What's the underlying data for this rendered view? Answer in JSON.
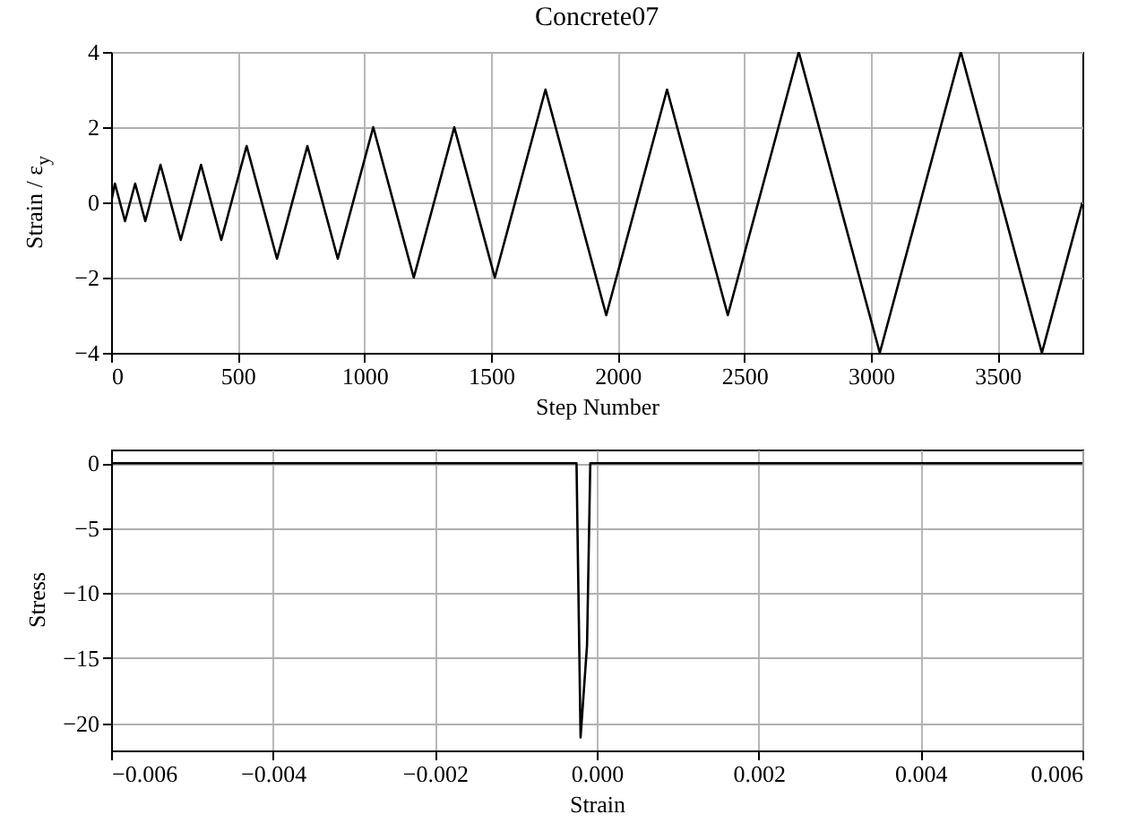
{
  "chart_data": [
    {
      "type": "line",
      "title": "Concrete07",
      "xlabel": "Step Number",
      "ylabel": "Strain / ε$_{y}$",
      "x": [
        0,
        15,
        55,
        95,
        135,
        195,
        275,
        355,
        435,
        535,
        655,
        775,
        895,
        1035,
        1195,
        1355,
        1515,
        1715,
        1955,
        2195,
        2435,
        2715,
        3035,
        3355,
        3675,
        3835
      ],
      "series": [
        {
          "color": "#000000",
          "values": [
            0,
            0.5,
            -0.5,
            0.5,
            -0.5,
            1,
            -1,
            1,
            -1,
            1.5,
            -1.5,
            1.5,
            -1.5,
            2,
            -2,
            2,
            -2,
            3,
            -3,
            3,
            -3,
            4,
            -4,
            4,
            -4,
            0
          ]
        }
      ],
      "xlim": [
        0,
        3835
      ],
      "xticks": [
        0,
        500,
        1000,
        1500,
        2000,
        2500,
        3000,
        3500
      ],
      "ylim": [
        -4,
        4
      ],
      "yticks": [
        -4,
        -2,
        0,
        2,
        4
      ],
      "grid": true,
      "marker": "none",
      "line_style": "solid"
    },
    {
      "type": "line",
      "xlabel": "Strain",
      "ylabel": "Stress",
      "x": [
        -0.006,
        -0.00025,
        -0.0002,
        -0.00012,
        -8e-05,
        0.006
      ],
      "series": [
        {
          "color": "#000000",
          "values": [
            0,
            0,
            -21.1,
            -14,
            0,
            0
          ]
        }
      ],
      "xlim": [
        -0.006,
        0.006
      ],
      "xticks": [
        -0.006,
        -0.004,
        -0.002,
        {
          "value": 0,
          "label": "0.000"
        },
        0.002,
        0.004,
        0.006
      ],
      "ylim": [
        -22.1,
        1.05
      ],
      "yticks": [
        -20,
        -15,
        -10,
        -5,
        0
      ],
      "grid": true,
      "marker": "none",
      "line_style": "solid"
    }
  ]
}
